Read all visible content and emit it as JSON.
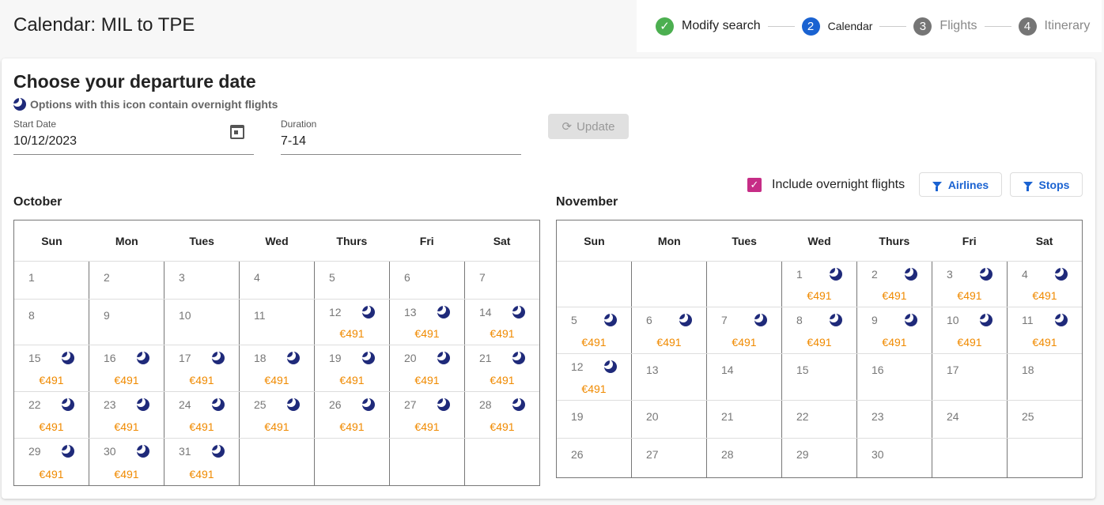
{
  "header": {
    "title": "Calendar: MIL to TPE"
  },
  "stepper": [
    {
      "n": "✓",
      "label": "Modify search",
      "state": "done",
      "color": "#4caf50"
    },
    {
      "n": "2",
      "label": "Calendar",
      "state": "active",
      "color": "#1a62d1"
    },
    {
      "n": "3",
      "label": "Flights",
      "state": "pending",
      "color": "#757575"
    },
    {
      "n": "4",
      "label": "Itinerary",
      "state": "pending",
      "color": "#757575"
    }
  ],
  "main": {
    "heading": "Choose your departure date",
    "overnight_note": "Options with this icon contain overnight flights",
    "start_date": {
      "label": "Start Date",
      "value": "10/12/2023"
    },
    "duration": {
      "label": "Duration",
      "value": "7-14"
    },
    "update_label": "Update",
    "include_overnight": {
      "label": "Include overnight flights",
      "checked": true
    },
    "airlines_label": "Airlines",
    "stops_label": "Stops"
  },
  "weekdays": [
    "Sun",
    "Mon",
    "Tues",
    "Wed",
    "Thurs",
    "Fri",
    "Sat"
  ],
  "colors": {
    "price": "#f08a00",
    "moon": "#1f2a7a",
    "checkbox": "#c62d86"
  },
  "months": [
    {
      "name": "October",
      "weeks": [
        [
          {
            "d": "1"
          },
          {
            "d": "2"
          },
          {
            "d": "3"
          },
          {
            "d": "4"
          },
          {
            "d": "5"
          },
          {
            "d": "6"
          },
          {
            "d": "7"
          }
        ],
        [
          {
            "d": "8"
          },
          {
            "d": "9"
          },
          {
            "d": "10"
          },
          {
            "d": "11"
          },
          {
            "d": "12",
            "p": "€491",
            "o": true
          },
          {
            "d": "13",
            "p": "€491",
            "o": true
          },
          {
            "d": "14",
            "p": "€491",
            "o": true
          }
        ],
        [
          {
            "d": "15",
            "p": "€491",
            "o": true
          },
          {
            "d": "16",
            "p": "€491",
            "o": true
          },
          {
            "d": "17",
            "p": "€491",
            "o": true
          },
          {
            "d": "18",
            "p": "€491",
            "o": true
          },
          {
            "d": "19",
            "p": "€491",
            "o": true
          },
          {
            "d": "20",
            "p": "€491",
            "o": true
          },
          {
            "d": "21",
            "p": "€491",
            "o": true
          }
        ],
        [
          {
            "d": "22",
            "p": "€491",
            "o": true
          },
          {
            "d": "23",
            "p": "€491",
            "o": true
          },
          {
            "d": "24",
            "p": "€491",
            "o": true
          },
          {
            "d": "25",
            "p": "€491",
            "o": true
          },
          {
            "d": "26",
            "p": "€491",
            "o": true
          },
          {
            "d": "27",
            "p": "€491",
            "o": true
          },
          {
            "d": "28",
            "p": "€491",
            "o": true
          }
        ],
        [
          {
            "d": "29",
            "p": "€491",
            "o": true
          },
          {
            "d": "30",
            "p": "€491",
            "o": true
          },
          {
            "d": "31",
            "p": "€491",
            "o": true
          },
          {},
          {},
          {},
          {}
        ]
      ]
    },
    {
      "name": "November",
      "weeks": [
        [
          {},
          {},
          {},
          {
            "d": "1",
            "p": "€491",
            "o": true
          },
          {
            "d": "2",
            "p": "€491",
            "o": true
          },
          {
            "d": "3",
            "p": "€491",
            "o": true
          },
          {
            "d": "4",
            "p": "€491",
            "o": true
          }
        ],
        [
          {
            "d": "5",
            "p": "€491",
            "o": true
          },
          {
            "d": "6",
            "p": "€491",
            "o": true
          },
          {
            "d": "7",
            "p": "€491",
            "o": true
          },
          {
            "d": "8",
            "p": "€491",
            "o": true
          },
          {
            "d": "9",
            "p": "€491",
            "o": true
          },
          {
            "d": "10",
            "p": "€491",
            "o": true
          },
          {
            "d": "11",
            "p": "€491",
            "o": true
          }
        ],
        [
          {
            "d": "12",
            "p": "€491",
            "o": true
          },
          {
            "d": "13"
          },
          {
            "d": "14"
          },
          {
            "d": "15"
          },
          {
            "d": "16"
          },
          {
            "d": "17"
          },
          {
            "d": "18"
          }
        ],
        [
          {
            "d": "19"
          },
          {
            "d": "20"
          },
          {
            "d": "21"
          },
          {
            "d": "22"
          },
          {
            "d": "23"
          },
          {
            "d": "24"
          },
          {
            "d": "25"
          }
        ],
        [
          {
            "d": "26"
          },
          {
            "d": "27"
          },
          {
            "d": "28"
          },
          {
            "d": "29"
          },
          {
            "d": "30"
          },
          {},
          {}
        ]
      ]
    }
  ]
}
